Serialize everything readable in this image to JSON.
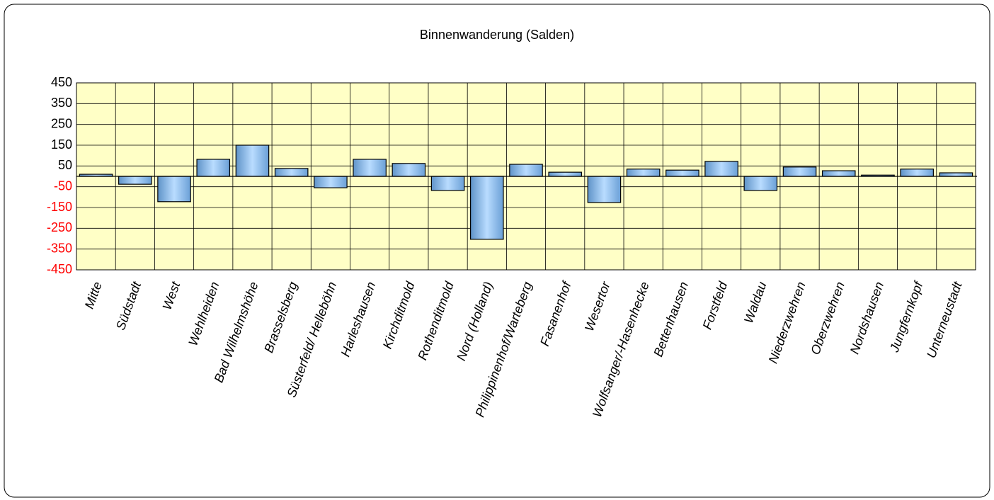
{
  "chart_data": {
    "type": "bar",
    "title": "Binnenwanderung (Salden)",
    "categories": [
      "Mitte",
      "Südstadt",
      "West",
      "Wehlheiden",
      "Bad Wilhelmshöhe",
      "Brasselsberg",
      "Süsterfeld/ Helleböhn",
      "Harleshausen",
      "Kirchditmold",
      "Rothenditmold",
      "Nord (Holland)",
      "Philippinenhof/Warteberg",
      "Fasanenhof",
      "Wesertor",
      "Wolfsanger/-Hasenhecke",
      "Bettenhausen",
      "Forstfeld",
      "Waldau",
      "Niederzwehren",
      "Oberzwehren",
      "Nordshausen",
      "Jungfernkopf",
      "Unterneustadt"
    ],
    "values": [
      10,
      -38,
      -122,
      82,
      150,
      38,
      -55,
      82,
      62,
      -68,
      -303,
      58,
      20,
      -126,
      35,
      30,
      72,
      -68,
      45,
      27,
      6,
      35,
      17
    ],
    "color": "#8fc1f0",
    "ylim": [
      -450,
      450
    ],
    "yticks": [
      450,
      350,
      250,
      150,
      50,
      -50,
      -150,
      -250,
      -350,
      -450
    ],
    "tick_colors": {
      "positive": "#000000",
      "negative": "#ff0000"
    },
    "grid": true
  }
}
